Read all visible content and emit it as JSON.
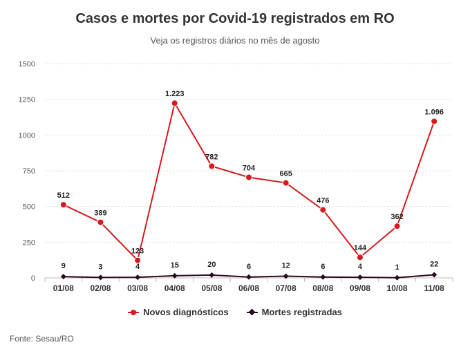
{
  "chart_data": {
    "type": "line",
    "title": "Casos e mortes por Covid-19 registrados em RO",
    "subtitle": "Veja os registros diários no mês de agosto",
    "categories": [
      "01/08",
      "02/08",
      "03/08",
      "04/08",
      "05/08",
      "06/08",
      "07/08",
      "08/08",
      "09/08",
      "10/08",
      "11/08"
    ],
    "series": [
      {
        "name": "Novos diagnósticos",
        "values": [
          512,
          389,
          123,
          1223,
          782,
          704,
          665,
          476,
          144,
          362,
          1096
        ],
        "labels": [
          "512",
          "389",
          "123",
          "1.223",
          "782",
          "704",
          "665",
          "476",
          "144",
          "362",
          "1.096"
        ],
        "color": "#d7191c",
        "marker": "circle"
      },
      {
        "name": "Mortes registradas",
        "values": [
          9,
          3,
          4,
          15,
          20,
          6,
          12,
          6,
          4,
          1,
          22
        ],
        "labels": [
          "9",
          "3",
          "4",
          "15",
          "20",
          "6",
          "12",
          "6",
          "4",
          "1",
          "22"
        ],
        "color": "#2b0a1e",
        "marker": "diamond"
      }
    ],
    "ylim": [
      0,
      1500
    ],
    "yticks": [
      0,
      250,
      500,
      750,
      1000,
      1250,
      1500
    ],
    "ytick_labels": [
      "0",
      "250",
      "500",
      "750",
      "1000",
      "1250",
      "1500"
    ],
    "grid": true,
    "legend_position": "bottom-center",
    "xlabel": "",
    "ylabel": ""
  },
  "source": "Fonte: Sesau/RO"
}
